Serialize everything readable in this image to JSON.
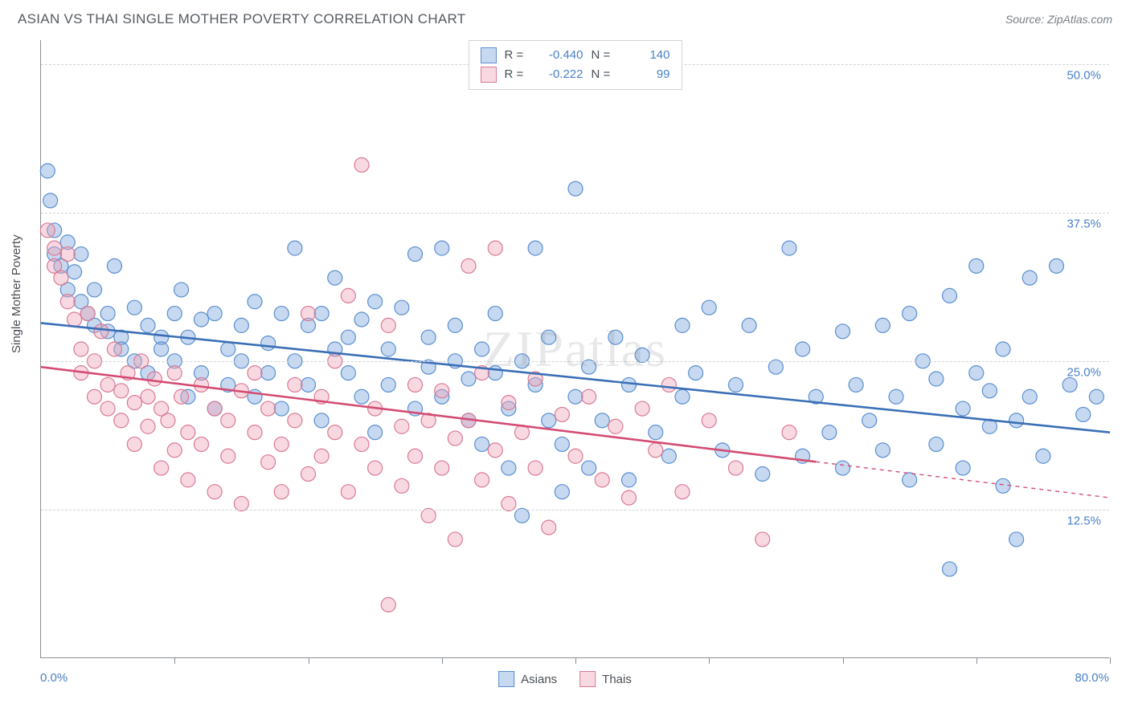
{
  "title": "ASIAN VS THAI SINGLE MOTHER POVERTY CORRELATION CHART",
  "source_label": "Source: ZipAtlas.com",
  "watermark": "ZIPatlas",
  "ylabel": "Single Mother Poverty",
  "chart": {
    "type": "scatter",
    "xlim": [
      0,
      80
    ],
    "ylim": [
      0,
      52
    ],
    "x_axis_start_label": "0.0%",
    "x_axis_end_label": "80.0%",
    "x_tick_positions": [
      10,
      20,
      30,
      40,
      50,
      60,
      70,
      80
    ],
    "y_gridlines": [
      {
        "value": 12.5,
        "label": "12.5%"
      },
      {
        "value": 25.0,
        "label": "25.0%"
      },
      {
        "value": 37.5,
        "label": "37.5%"
      },
      {
        "value": 50.0,
        "label": "50.0%"
      }
    ],
    "background_color": "#ffffff",
    "grid_color": "#d0d4d8",
    "axis_color": "#8a8f95",
    "marker_radius": 9,
    "marker_stroke_width": 1.2,
    "trend_line_width": 2.6,
    "series": [
      {
        "name": "Asians",
        "label": "Asians",
        "fill": "rgba(128,170,222,0.45)",
        "stroke": "#5b8fd1",
        "trend_color": "#3a6fb6",
        "trend": {
          "x1": 0,
          "y1": 28.2,
          "x2": 80,
          "y2": 19.0,
          "dash_from_x": null
        },
        "r_value": "-0.440",
        "n_value": "140",
        "points": [
          [
            0.5,
            41
          ],
          [
            0.7,
            38.5
          ],
          [
            1,
            36
          ],
          [
            1,
            34
          ],
          [
            1.5,
            33
          ],
          [
            2,
            35
          ],
          [
            2,
            31
          ],
          [
            2.5,
            32.5
          ],
          [
            3,
            30
          ],
          [
            3,
            34
          ],
          [
            3.5,
            29
          ],
          [
            4,
            28
          ],
          [
            4,
            31
          ],
          [
            5,
            29
          ],
          [
            5,
            27.5
          ],
          [
            5.5,
            33
          ],
          [
            6,
            27
          ],
          [
            6,
            26
          ],
          [
            7,
            29.5
          ],
          [
            7,
            25
          ],
          [
            8,
            28
          ],
          [
            8,
            24
          ],
          [
            9,
            27
          ],
          [
            9,
            26
          ],
          [
            10,
            29
          ],
          [
            10,
            25
          ],
          [
            10.5,
            31
          ],
          [
            11,
            22
          ],
          [
            11,
            27
          ],
          [
            12,
            28.5
          ],
          [
            12,
            24
          ],
          [
            13,
            29
          ],
          [
            13,
            21
          ],
          [
            14,
            26
          ],
          [
            14,
            23
          ],
          [
            15,
            28
          ],
          [
            15,
            25
          ],
          [
            16,
            30
          ],
          [
            16,
            22
          ],
          [
            17,
            26.5
          ],
          [
            17,
            24
          ],
          [
            18,
            29
          ],
          [
            18,
            21
          ],
          [
            19,
            34.5
          ],
          [
            19,
            25
          ],
          [
            20,
            28
          ],
          [
            20,
            23
          ],
          [
            21,
            29
          ],
          [
            21,
            20
          ],
          [
            22,
            26
          ],
          [
            22,
            32
          ],
          [
            23,
            24
          ],
          [
            23,
            27
          ],
          [
            24,
            28.5
          ],
          [
            24,
            22
          ],
          [
            25,
            30
          ],
          [
            25,
            19
          ],
          [
            26,
            26
          ],
          [
            26,
            23
          ],
          [
            27,
            29.5
          ],
          [
            28,
            34
          ],
          [
            28,
            21
          ],
          [
            29,
            24.5
          ],
          [
            29,
            27
          ],
          [
            30,
            34.5
          ],
          [
            30,
            22
          ],
          [
            31,
            25
          ],
          [
            31,
            28
          ],
          [
            32,
            23.5
          ],
          [
            32,
            20
          ],
          [
            33,
            26
          ],
          [
            33,
            18
          ],
          [
            34,
            24
          ],
          [
            34,
            29
          ],
          [
            35,
            21
          ],
          [
            35,
            16
          ],
          [
            36,
            12
          ],
          [
            36,
            25
          ],
          [
            37,
            23
          ],
          [
            37,
            34.5
          ],
          [
            38,
            20
          ],
          [
            38,
            27
          ],
          [
            39,
            18
          ],
          [
            39,
            14
          ],
          [
            40,
            39.5
          ],
          [
            40,
            22
          ],
          [
            41,
            24.5
          ],
          [
            41,
            16
          ],
          [
            42,
            20
          ],
          [
            43,
            27
          ],
          [
            44,
            23
          ],
          [
            44,
            15
          ],
          [
            45,
            25.5
          ],
          [
            46,
            19
          ],
          [
            47,
            17
          ],
          [
            48,
            28
          ],
          [
            48,
            22
          ],
          [
            49,
            24
          ],
          [
            50,
            29.5
          ],
          [
            51,
            17.5
          ],
          [
            52,
            23
          ],
          [
            53,
            28
          ],
          [
            54,
            15.5
          ],
          [
            55,
            24.5
          ],
          [
            56,
            34.5
          ],
          [
            57,
            17
          ],
          [
            57,
            26
          ],
          [
            58,
            22
          ],
          [
            59,
            19
          ],
          [
            60,
            27.5
          ],
          [
            60,
            16
          ],
          [
            61,
            23
          ],
          [
            62,
            20
          ],
          [
            63,
            28
          ],
          [
            63,
            17.5
          ],
          [
            64,
            22
          ],
          [
            65,
            29
          ],
          [
            65,
            15
          ],
          [
            66,
            25
          ],
          [
            67,
            18
          ],
          [
            67,
            23.5
          ],
          [
            68,
            30.5
          ],
          [
            68,
            7.5
          ],
          [
            69,
            21
          ],
          [
            69,
            16
          ],
          [
            70,
            33
          ],
          [
            70,
            24
          ],
          [
            71,
            19.5
          ],
          [
            71,
            22.5
          ],
          [
            72,
            26
          ],
          [
            72,
            14.5
          ],
          [
            73,
            20
          ],
          [
            73,
            10
          ],
          [
            74,
            32
          ],
          [
            74,
            22
          ],
          [
            75,
            17
          ],
          [
            76,
            33
          ],
          [
            77,
            23
          ],
          [
            78,
            20.5
          ],
          [
            79,
            22
          ]
        ]
      },
      {
        "name": "Thais",
        "label": "Thais",
        "fill": "rgba(240,160,180,0.40)",
        "stroke": "#d97a95",
        "trend_color": "#d44c73",
        "trend": {
          "x1": 0,
          "y1": 24.5,
          "x2": 80,
          "y2": 13.5,
          "dash_from_x": 58
        },
        "r_value": "-0.222",
        "n_value": "99",
        "points": [
          [
            0.5,
            36
          ],
          [
            1,
            34.5
          ],
          [
            1,
            33
          ],
          [
            1.5,
            32
          ],
          [
            2,
            34
          ],
          [
            2,
            30
          ],
          [
            2.5,
            28.5
          ],
          [
            3,
            26
          ],
          [
            3,
            24
          ],
          [
            3.5,
            29
          ],
          [
            4,
            25
          ],
          [
            4,
            22
          ],
          [
            4.5,
            27.5
          ],
          [
            5,
            23
          ],
          [
            5,
            21
          ],
          [
            5.5,
            26
          ],
          [
            6,
            22.5
          ],
          [
            6,
            20
          ],
          [
            6.5,
            24
          ],
          [
            7,
            21.5
          ],
          [
            7,
            18
          ],
          [
            7.5,
            25
          ],
          [
            8,
            22
          ],
          [
            8,
            19.5
          ],
          [
            8.5,
            23.5
          ],
          [
            9,
            16
          ],
          [
            9,
            21
          ],
          [
            9.5,
            20
          ],
          [
            10,
            24
          ],
          [
            10,
            17.5
          ],
          [
            10.5,
            22
          ],
          [
            11,
            15
          ],
          [
            11,
            19
          ],
          [
            12,
            23
          ],
          [
            12,
            18
          ],
          [
            13,
            21
          ],
          [
            13,
            14
          ],
          [
            14,
            20
          ],
          [
            14,
            17
          ],
          [
            15,
            22.5
          ],
          [
            15,
            13
          ],
          [
            16,
            19
          ],
          [
            16,
            24
          ],
          [
            17,
            16.5
          ],
          [
            17,
            21
          ],
          [
            18,
            18
          ],
          [
            18,
            14
          ],
          [
            19,
            23
          ],
          [
            19,
            20
          ],
          [
            20,
            29
          ],
          [
            20,
            15.5
          ],
          [
            21,
            17
          ],
          [
            21,
            22
          ],
          [
            22,
            19
          ],
          [
            22,
            25
          ],
          [
            23,
            14
          ],
          [
            23,
            30.5
          ],
          [
            24,
            41.5
          ],
          [
            24,
            18
          ],
          [
            25,
            21
          ],
          [
            25,
            16
          ],
          [
            26,
            28
          ],
          [
            26,
            4.5
          ],
          [
            27,
            19.5
          ],
          [
            27,
            14.5
          ],
          [
            28,
            17
          ],
          [
            28,
            23
          ],
          [
            29,
            12
          ],
          [
            29,
            20
          ],
          [
            30,
            16
          ],
          [
            30,
            22.5
          ],
          [
            31,
            18.5
          ],
          [
            31,
            10
          ],
          [
            32,
            20
          ],
          [
            32,
            33
          ],
          [
            33,
            15
          ],
          [
            33,
            24
          ],
          [
            34,
            34.5
          ],
          [
            34,
            17.5
          ],
          [
            35,
            21.5
          ],
          [
            35,
            13
          ],
          [
            36,
            19
          ],
          [
            37,
            16
          ],
          [
            37,
            23.5
          ],
          [
            38,
            11
          ],
          [
            39,
            20.5
          ],
          [
            40,
            17
          ],
          [
            41,
            22
          ],
          [
            42,
            15
          ],
          [
            43,
            19.5
          ],
          [
            44,
            13.5
          ],
          [
            45,
            21
          ],
          [
            46,
            17.5
          ],
          [
            47,
            23
          ],
          [
            48,
            14
          ],
          [
            50,
            20
          ],
          [
            52,
            16
          ],
          [
            54,
            10
          ],
          [
            56,
            19
          ]
        ]
      }
    ]
  },
  "legend_top": {
    "r_label": "R =",
    "n_label": "N ="
  },
  "legend_bottom_labels": [
    "Asians",
    "Thais"
  ]
}
